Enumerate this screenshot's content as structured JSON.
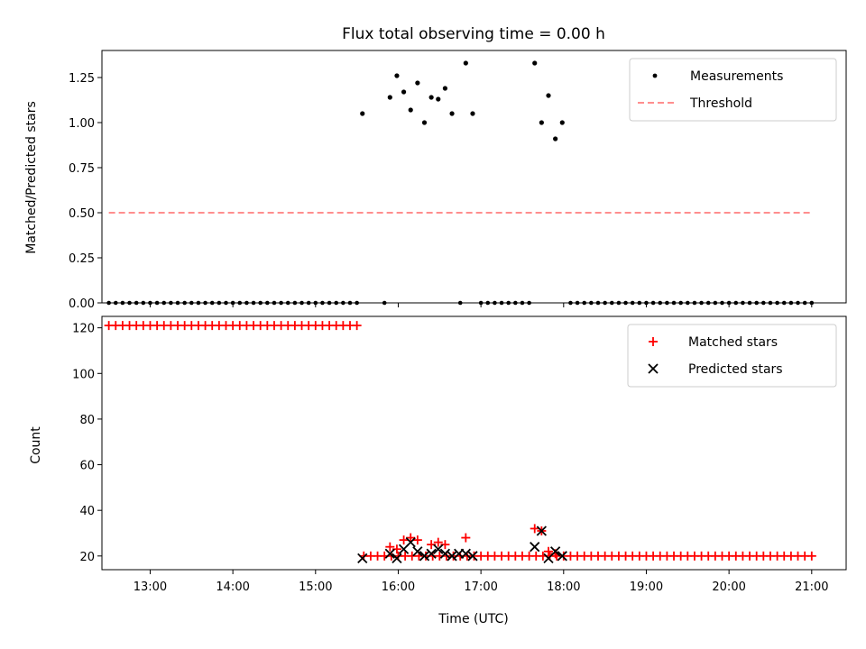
{
  "chart_data": [
    {
      "type": "scatter",
      "title": "Flux total observing time = 0.00 h",
      "xlabel": "",
      "ylabel": "Matched/Predicted stars",
      "xlim": [
        "12:25",
        "21:25"
      ],
      "ylim": [
        0,
        1.4
      ],
      "x_tick_labels": [
        "13:00",
        "14:00",
        "15:00",
        "16:00",
        "17:00",
        "18:00",
        "19:00",
        "20:00",
        "21:00"
      ],
      "y_tick_labels": [
        "0.00",
        "0.25",
        "0.50",
        "0.75",
        "1.00",
        "1.25"
      ],
      "y_ticks": [
        0,
        0.25,
        0.5,
        0.75,
        1.0,
        1.25
      ],
      "legend": {
        "position": "top-right",
        "entries": [
          "Measurements",
          "Threshold"
        ]
      },
      "colors": {
        "measurements": "#000000",
        "threshold": "#ff7f7f"
      },
      "series": [
        {
          "name": "Measurements",
          "marker": "dot",
          "zero_run_start": "12:30",
          "zero_run_end": "21:00",
          "zero_run_step_min": 5,
          "zero_gaps": [
            [
              "15:35",
              "15:45"
            ],
            [
              "15:55",
              "16:40"
            ],
            [
              "16:50",
              "16:55"
            ],
            [
              "17:40",
              "18:00"
            ]
          ],
          "points": [
            {
              "x": "15:34",
              "y": 1.05
            },
            {
              "x": "15:54",
              "y": 1.14
            },
            {
              "x": "15:59",
              "y": 1.26
            },
            {
              "x": "16:04",
              "y": 1.17
            },
            {
              "x": "16:09",
              "y": 1.07
            },
            {
              "x": "16:14",
              "y": 1.22
            },
            {
              "x": "16:19",
              "y": 1.0
            },
            {
              "x": "16:24",
              "y": 1.14
            },
            {
              "x": "16:29",
              "y": 1.13
            },
            {
              "x": "16:34",
              "y": 1.19
            },
            {
              "x": "16:39",
              "y": 1.05
            },
            {
              "x": "16:49",
              "y": 1.33
            },
            {
              "x": "16:54",
              "y": 1.05
            },
            {
              "x": "17:39",
              "y": 1.33
            },
            {
              "x": "17:44",
              "y": 1.0
            },
            {
              "x": "17:49",
              "y": 1.15
            },
            {
              "x": "17:54",
              "y": 0.91
            },
            {
              "x": "17:59",
              "y": 1.0
            }
          ]
        },
        {
          "name": "Threshold",
          "style": "dashed",
          "x": [
            "12:30",
            "21:00"
          ],
          "y": [
            0.5,
            0.5
          ]
        }
      ]
    },
    {
      "type": "scatter",
      "title": "",
      "xlabel": "Time (UTC)",
      "ylabel": "Count",
      "xlim": [
        "12:25",
        "21:25"
      ],
      "ylim": [
        14,
        125
      ],
      "x_tick_labels": [
        "13:00",
        "14:00",
        "15:00",
        "16:00",
        "17:00",
        "18:00",
        "19:00",
        "20:00",
        "21:00"
      ],
      "y_tick_labels": [
        "20",
        "40",
        "60",
        "80",
        "100",
        "120"
      ],
      "y_ticks": [
        20,
        40,
        60,
        80,
        100,
        120
      ],
      "legend": {
        "position": "top-right",
        "entries": [
          "Matched stars",
          "Predicted stars"
        ]
      },
      "colors": {
        "matched": "#ff0000",
        "predicted": "#000000"
      },
      "series": [
        {
          "name": "Matched stars",
          "marker": "plus",
          "runs": [
            {
              "start": "12:30",
              "end": "15:30",
              "step_min": 5,
              "y": 121
            },
            {
              "start": "15:35",
              "end": "21:00",
              "step_min": 5,
              "y": 20
            }
          ],
          "points": [
            {
              "x": "15:54",
              "y": 24
            },
            {
              "x": "15:59",
              "y": 23
            },
            {
              "x": "16:04",
              "y": 27
            },
            {
              "x": "16:09",
              "y": 28
            },
            {
              "x": "16:14",
              "y": 27
            },
            {
              "x": "16:24",
              "y": 25
            },
            {
              "x": "16:29",
              "y": 26
            },
            {
              "x": "16:34",
              "y": 25
            },
            {
              "x": "16:49",
              "y": 28
            },
            {
              "x": "17:39",
              "y": 32
            },
            {
              "x": "17:44",
              "y": 31
            },
            {
              "x": "17:49",
              "y": 22
            },
            {
              "x": "17:54",
              "y": 21
            }
          ]
        },
        {
          "name": "Predicted stars",
          "marker": "x",
          "points": [
            {
              "x": "15:34",
              "y": 19
            },
            {
              "x": "15:54",
              "y": 21
            },
            {
              "x": "15:59",
              "y": 19
            },
            {
              "x": "16:04",
              "y": 23
            },
            {
              "x": "16:09",
              "y": 26
            },
            {
              "x": "16:14",
              "y": 22
            },
            {
              "x": "16:19",
              "y": 20
            },
            {
              "x": "16:24",
              "y": 21
            },
            {
              "x": "16:29",
              "y": 23
            },
            {
              "x": "16:34",
              "y": 21
            },
            {
              "x": "16:39",
              "y": 20
            },
            {
              "x": "16:44",
              "y": 21
            },
            {
              "x": "16:49",
              "y": 21
            },
            {
              "x": "16:54",
              "y": 20
            },
            {
              "x": "17:39",
              "y": 24
            },
            {
              "x": "17:44",
              "y": 31
            },
            {
              "x": "17:49",
              "y": 19
            },
            {
              "x": "17:54",
              "y": 22
            },
            {
              "x": "17:59",
              "y": 20
            }
          ]
        }
      ]
    }
  ]
}
